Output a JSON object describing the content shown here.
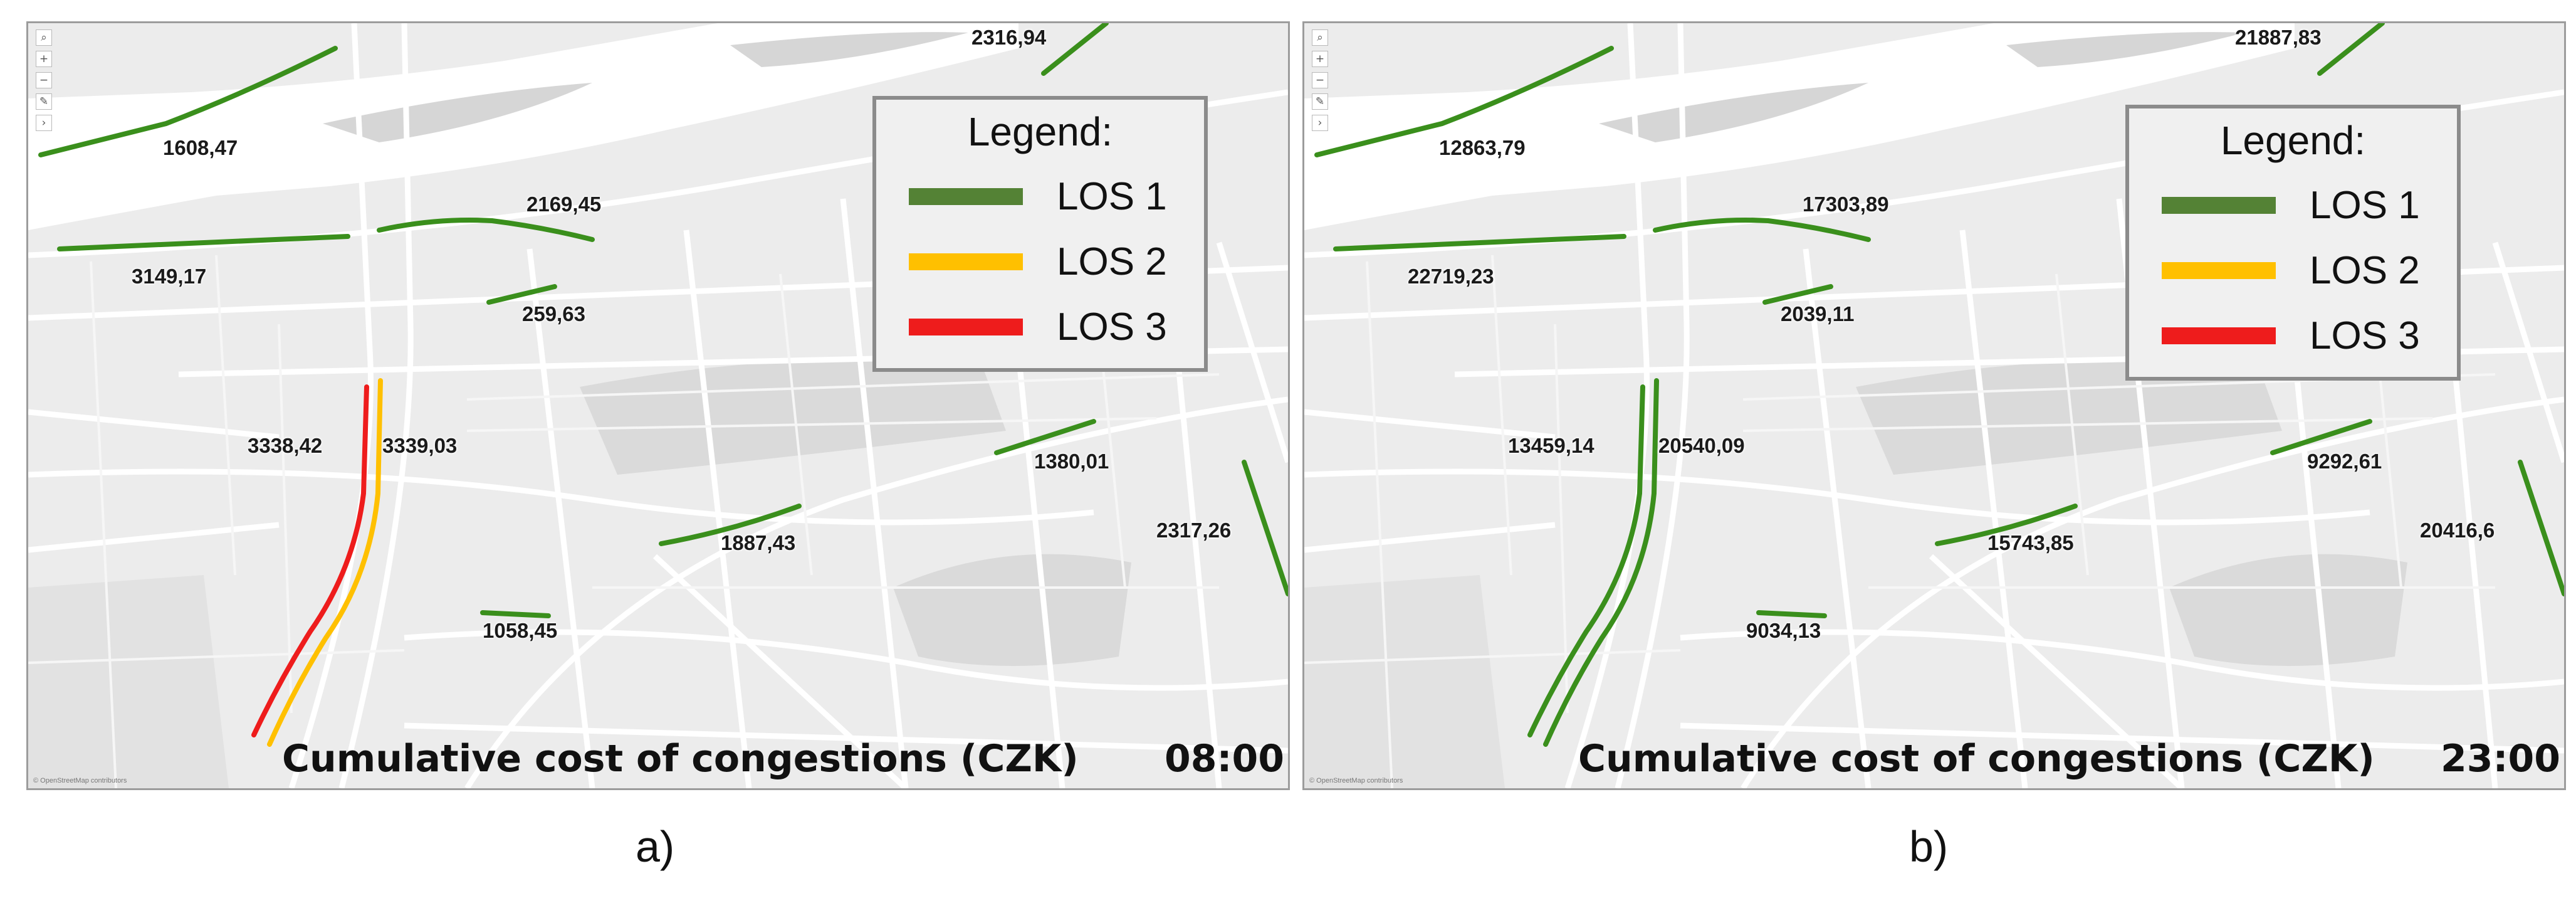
{
  "colors": {
    "los1": "#3a8f1c",
    "los1_legend": "#548235",
    "los2": "#ffc000",
    "los3": "#ee1c1c",
    "map_bg": "#ececec",
    "river": "#ffffff",
    "park": "#dcdcdc"
  },
  "map_controls": [
    "search-icon",
    "zoom-in-icon",
    "zoom-out-icon",
    "draw-icon",
    "expand-icon"
  ],
  "map_controls_glyphs": [
    "⌕",
    "+",
    "−",
    "✎",
    "›"
  ],
  "legend": {
    "title": "Legend:",
    "items": [
      {
        "label": "LOS 1",
        "color": "#548235"
      },
      {
        "label": "LOS 2",
        "color": "#ffc000"
      },
      {
        "label": "LOS 3",
        "color": "#ee1c1c"
      }
    ]
  },
  "caption": "Cumulative cost of congestions (CZK)",
  "attribution": "© OpenStreetMap contributors",
  "panels": [
    {
      "letter": "a)",
      "time": "08:00",
      "segments": {
        "top_right": "2316,94",
        "upper_left": "1608,47",
        "north_bridge": "2169,45",
        "west_bridge": "3149,17",
        "small_center": "259,63",
        "rail_left": "3338,42",
        "rail_right": "3339,03",
        "east_upper": "1380,01",
        "center_south": "1887,43",
        "far_east": "2317,26",
        "south": "1058,45"
      }
    },
    {
      "letter": "b)",
      "time": "23:00",
      "segments": {
        "top_right": "21887,83",
        "upper_left": "12863,79",
        "north_bridge": "17303,89",
        "west_bridge": "22719,23",
        "small_center": "2039,11",
        "rail_left": "13459,14",
        "rail_right": "20540,09",
        "east_upper": "9292,61",
        "center_south": "15743,85",
        "far_east": "20416,6",
        "south": "9034,13"
      }
    }
  ]
}
